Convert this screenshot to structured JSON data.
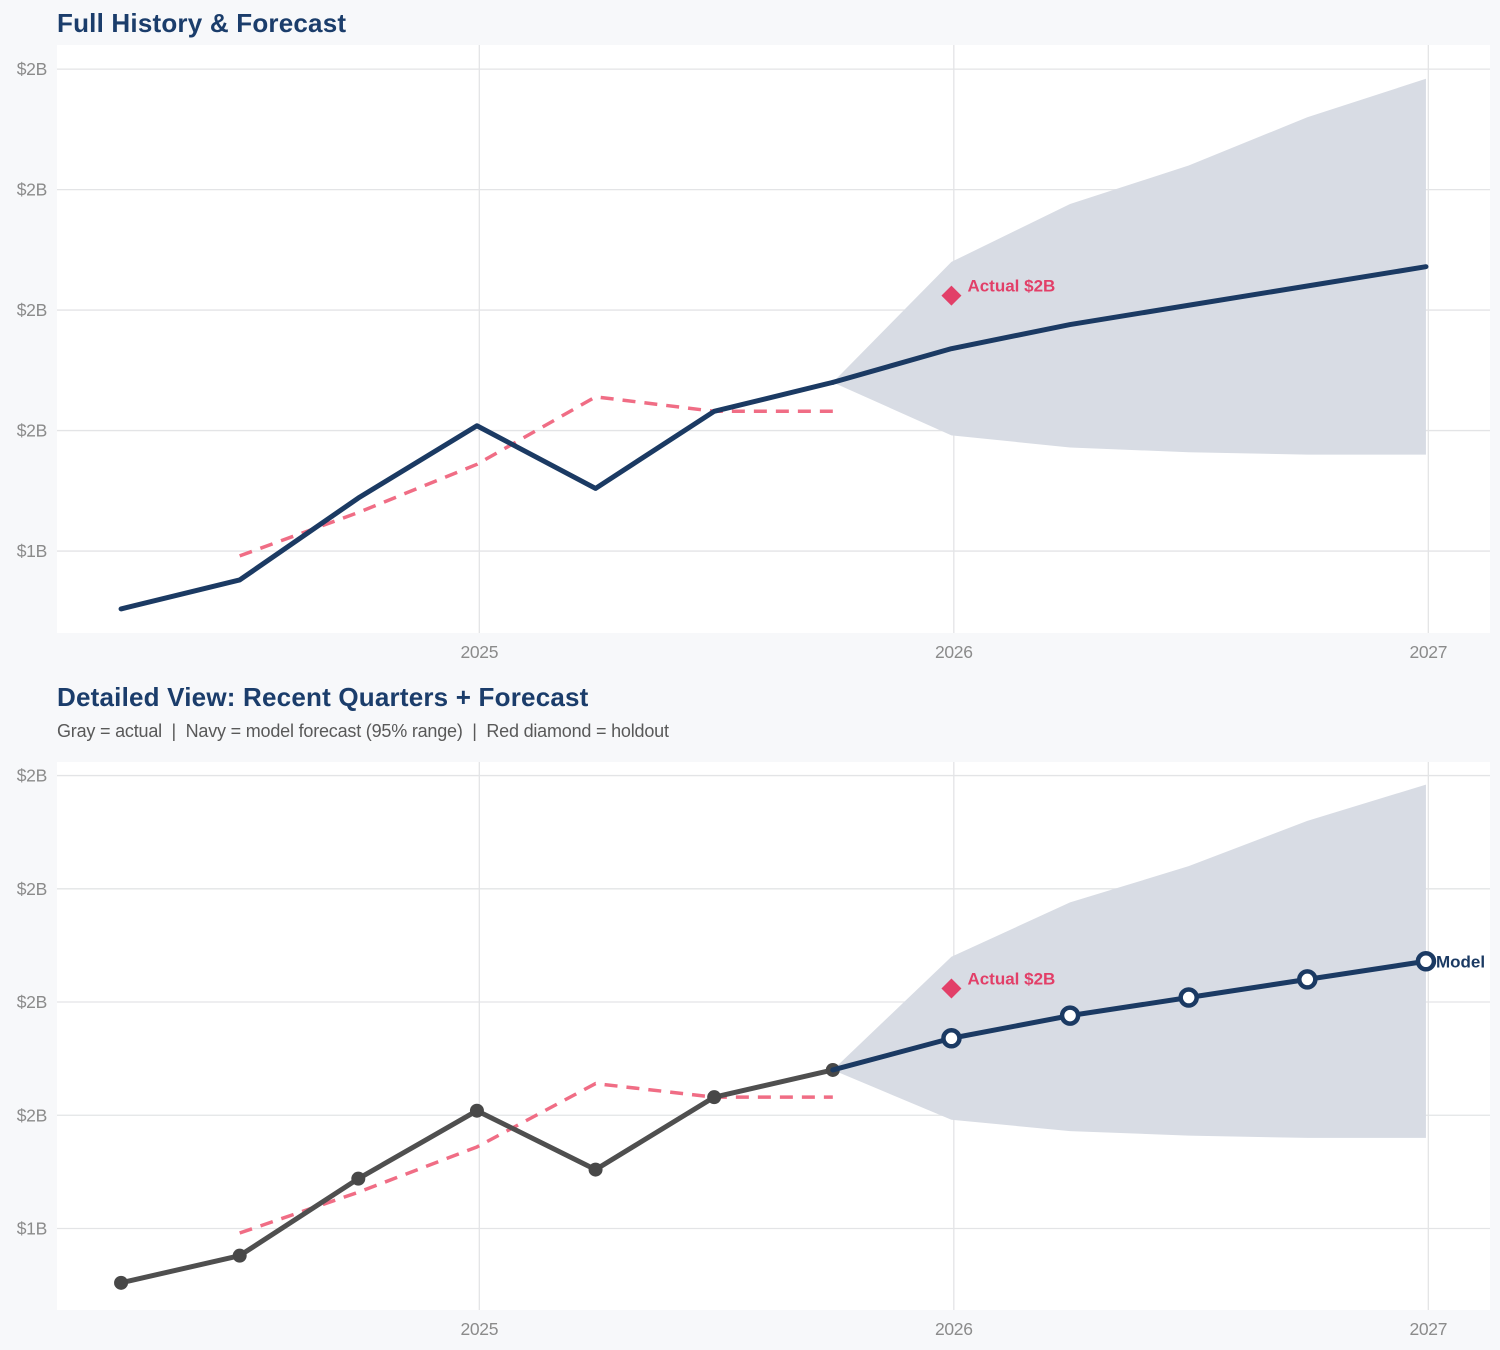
{
  "page": {
    "background_color": "#f7f8fa",
    "plot_background_color": "#ffffff",
    "gridline_color": "#e3e4e6",
    "navy_color": "#1b3a63",
    "pink_color": "#f06d85",
    "red_color": "#e23f68",
    "band_color": "#d8dce4",
    "gray_line_color": "#4f4f4f"
  },
  "chart_data": [
    {
      "type": "line",
      "title": "Full History & Forecast",
      "grid": true,
      "legend_position": "none",
      "x_axis": {
        "range": [
          2024.11,
          2027.13
        ],
        "ticks": [
          2025,
          2026,
          2027
        ],
        "tick_labels": [
          "2025",
          "2026",
          "2027"
        ]
      },
      "y_axis": {
        "range": [
          1.08,
          2.3
        ],
        "unit": "billions USD",
        "ticks": [
          1.25,
          1.5,
          1.75,
          2.0,
          2.25
        ],
        "tick_labels": [
          "$1B",
          "$2B",
          "$2B",
          "$2B",
          "$2B"
        ]
      },
      "series": [
        {
          "name": "forecast-95-band",
          "type": "band",
          "color": "#d8dce4",
          "x": [
            2025.745,
            2025.995,
            2026.245,
            2026.495,
            2026.745,
            2026.995
          ],
          "upper": [
            1.6,
            1.85,
            1.97,
            2.05,
            2.15,
            2.23
          ],
          "lower": [
            1.6,
            1.49,
            1.465,
            1.455,
            1.45,
            1.45
          ]
        },
        {
          "name": "model-fit-insample",
          "type": "line",
          "color": "#f06d85",
          "dashed": true,
          "width": 3.5,
          "marker": "none",
          "x": [
            2024.495,
            2024.745,
            2024.995,
            2025.245,
            2025.495,
            2025.745
          ],
          "values": [
            1.24,
            1.33,
            1.43,
            1.57,
            1.54,
            1.54
          ]
        },
        {
          "name": "actual-history",
          "type": "line",
          "color": "#1b3a63",
          "dashed": false,
          "width": 5,
          "marker": "none",
          "x": [
            2024.245,
            2024.495,
            2024.745,
            2024.995,
            2025.245,
            2025.495,
            2025.745
          ],
          "values": [
            1.13,
            1.19,
            1.36,
            1.51,
            1.38,
            1.54,
            1.6
          ]
        },
        {
          "name": "model-forecast",
          "type": "line",
          "color": "#1b3a63",
          "dashed": false,
          "width": 5,
          "marker": "none",
          "x": [
            2025.745,
            2025.995,
            2026.245,
            2026.495,
            2026.745,
            2026.995
          ],
          "values": [
            1.6,
            1.67,
            1.72,
            1.76,
            1.8,
            1.84
          ]
        }
      ],
      "annotations": [
        {
          "shape": "diamond",
          "x": 2025.995,
          "value": 1.78,
          "label": "Actual $2B",
          "color": "#e23f68"
        }
      ]
    },
    {
      "type": "line",
      "title": "Detailed View: Recent Quarters + Forecast",
      "subtitle": "Gray = actual  |  Navy = model forecast (95% range)  |  Red diamond = holdout",
      "grid": true,
      "legend_position": "none",
      "x_axis": {
        "range": [
          2024.11,
          2027.13
        ],
        "ticks": [
          2025,
          2026,
          2027
        ],
        "tick_labels": [
          "2025",
          "2026",
          "2027"
        ]
      },
      "y_axis": {
        "range": [
          1.07,
          2.28
        ],
        "unit": "billions USD",
        "ticks": [
          1.25,
          1.5,
          1.75,
          2.0,
          2.25
        ],
        "tick_labels": [
          "$1B",
          "$2B",
          "$2B",
          "$2B",
          "$2B"
        ]
      },
      "series": [
        {
          "name": "forecast-95-band",
          "type": "band",
          "color": "#d8dce4",
          "x": [
            2025.745,
            2025.995,
            2026.245,
            2026.495,
            2026.745,
            2026.995
          ],
          "upper": [
            1.6,
            1.85,
            1.97,
            2.05,
            2.15,
            2.23
          ],
          "lower": [
            1.6,
            1.49,
            1.465,
            1.455,
            1.45,
            1.45
          ]
        },
        {
          "name": "model-fit-insample",
          "type": "line",
          "color": "#f06d85",
          "dashed": true,
          "width": 3.5,
          "marker": "none",
          "x": [
            2024.495,
            2024.745,
            2024.995,
            2025.245,
            2025.495,
            2025.745
          ],
          "values": [
            1.24,
            1.33,
            1.43,
            1.57,
            1.54,
            1.54
          ]
        },
        {
          "name": "actual-history",
          "type": "line",
          "color": "#4f4f4f",
          "dashed": false,
          "width": 5,
          "marker": "dot",
          "marker_color": "#484848",
          "x": [
            2024.245,
            2024.495,
            2024.745,
            2024.995,
            2025.245,
            2025.495,
            2025.745
          ],
          "values": [
            1.13,
            1.19,
            1.36,
            1.51,
            1.38,
            1.54,
            1.6
          ]
        },
        {
          "name": "model-forecast",
          "type": "line",
          "color": "#1b3a63",
          "dashed": false,
          "width": 5,
          "marker": "open_circle",
          "marker_skip_first": true,
          "x": [
            2025.745,
            2025.995,
            2026.245,
            2026.495,
            2026.745,
            2026.995
          ],
          "values": [
            1.6,
            1.67,
            1.72,
            1.76,
            1.8,
            1.84
          ]
        }
      ],
      "annotations": [
        {
          "shape": "diamond",
          "x": 2025.995,
          "value": 1.78,
          "label": "Actual $2B",
          "color": "#e23f68"
        },
        {
          "shape": "none",
          "x": 2026.995,
          "value": 1.84,
          "label": "Model",
          "color": "#1b3a63"
        }
      ]
    }
  ]
}
